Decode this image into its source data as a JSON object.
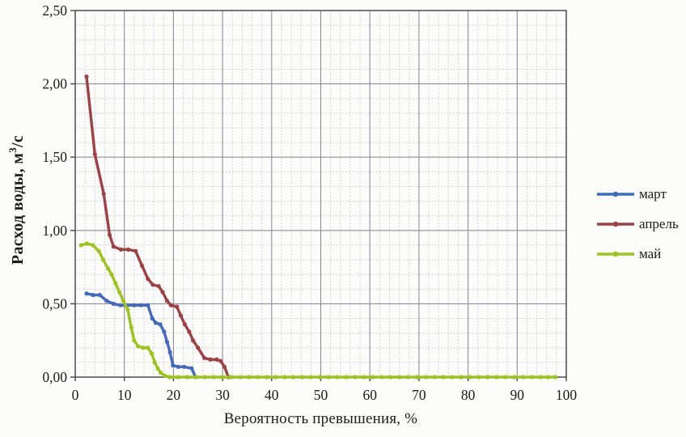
{
  "figure": {
    "background": "#fcfcfb"
  },
  "colors": {
    "grid_minor": "#cacad8",
    "grid_major": "#8e8e9a",
    "axis": "#55555c",
    "tick": "#44444a",
    "text": "#1b1b1b"
  },
  "chart_data": {
    "type": "line",
    "title": "",
    "xlabel": "Вероятность превышения, %",
    "ylabel": "Расход воды, м3/с",
    "ylabel_pre": "Расход воды, м",
    "ylabel_sup": "3",
    "ylabel_post": "/с",
    "xlim": [
      0,
      100
    ],
    "ylim": [
      0,
      2.5
    ],
    "x_major_step": 10,
    "x_minor_step": 2,
    "y_major_step": 0.5,
    "y_minor_step": 0.1,
    "grid": "major+minor",
    "legend_position": "right",
    "x_tick_labels": [
      "0",
      "10",
      "20",
      "30",
      "40",
      "50",
      "60",
      "70",
      "80",
      "90",
      "100"
    ],
    "x_tick_values": [
      0,
      10,
      20,
      30,
      40,
      50,
      60,
      70,
      80,
      90,
      100
    ],
    "y_tick_labels": [
      "0,00",
      "0,50",
      "1,00",
      "1,50",
      "2,00",
      "2,50"
    ],
    "y_tick_values": [
      0,
      0.5,
      1,
      1.5,
      2,
      2.5
    ],
    "series": [
      {
        "name": "март",
        "color": "#4169c4",
        "points": [
          [
            2.3,
            0.57
          ],
          [
            3.6,
            0.56
          ],
          [
            5,
            0.56
          ],
          [
            6.4,
            0.52
          ],
          [
            7.8,
            0.5
          ],
          [
            9.2,
            0.49
          ],
          [
            10.6,
            0.49
          ],
          [
            12,
            0.49
          ],
          [
            13.4,
            0.49
          ],
          [
            14.8,
            0.49
          ],
          [
            15.7,
            0.4
          ],
          [
            16.4,
            0.37
          ],
          [
            17.3,
            0.36
          ],
          [
            18.1,
            0.31
          ],
          [
            18.7,
            0.24
          ],
          [
            19.3,
            0.17
          ],
          [
            19.9,
            0.08
          ],
          [
            21,
            0.07
          ],
          [
            22.2,
            0.07
          ],
          [
            23.7,
            0.06
          ],
          [
            24.5,
            0.0
          ]
        ]
      },
      {
        "name": "апрель",
        "color": "#a04045",
        "points": [
          [
            2.3,
            2.05
          ],
          [
            4,
            1.52
          ],
          [
            5.8,
            1.25
          ],
          [
            7,
            0.97
          ],
          [
            7.8,
            0.89
          ],
          [
            9.3,
            0.87
          ],
          [
            10.8,
            0.87
          ],
          [
            12.3,
            0.86
          ],
          [
            13.6,
            0.76
          ],
          [
            14.8,
            0.67
          ],
          [
            15.8,
            0.63
          ],
          [
            17,
            0.62
          ],
          [
            17.8,
            0.58
          ],
          [
            18.7,
            0.52
          ],
          [
            19.5,
            0.49
          ],
          [
            20.7,
            0.48
          ],
          [
            21.5,
            0.42
          ],
          [
            22.3,
            0.36
          ],
          [
            23.2,
            0.31
          ],
          [
            24,
            0.25
          ],
          [
            25,
            0.2
          ],
          [
            26.3,
            0.13
          ],
          [
            27.5,
            0.12
          ],
          [
            28.8,
            0.12
          ],
          [
            29.6,
            0.11
          ],
          [
            30.4,
            0.07
          ],
          [
            31.2,
            0.0
          ]
        ]
      },
      {
        "name": "май",
        "color": "#9cc51a",
        "points": [
          [
            1.2,
            0.9
          ],
          [
            2.4,
            0.91
          ],
          [
            3.6,
            0.9
          ],
          [
            4.8,
            0.86
          ],
          [
            5.7,
            0.8
          ],
          [
            6.7,
            0.74
          ],
          [
            7.4,
            0.7
          ],
          [
            8.2,
            0.64
          ],
          [
            9,
            0.58
          ],
          [
            9.8,
            0.52
          ],
          [
            10.7,
            0.46
          ],
          [
            11.4,
            0.34
          ],
          [
            12,
            0.25
          ],
          [
            12.8,
            0.21
          ],
          [
            13.8,
            0.2
          ],
          [
            14.8,
            0.2
          ],
          [
            15.6,
            0.16
          ],
          [
            16.2,
            0.1
          ],
          [
            16.8,
            0.06
          ],
          [
            17.4,
            0.03
          ],
          [
            18.2,
            0.01
          ],
          [
            19.2,
            0
          ],
          [
            21,
            0
          ],
          [
            22.8,
            0
          ],
          [
            24.6,
            0
          ],
          [
            26.4,
            0
          ],
          [
            28.2,
            0
          ],
          [
            30,
            0
          ],
          [
            31.8,
            0
          ],
          [
            33.6,
            0
          ],
          [
            35.4,
            0
          ],
          [
            37.2,
            0
          ],
          [
            39,
            0
          ],
          [
            40.8,
            0
          ],
          [
            42.6,
            0
          ],
          [
            44.4,
            0
          ],
          [
            46.2,
            0
          ],
          [
            48,
            0
          ],
          [
            49.8,
            0
          ],
          [
            51.6,
            0
          ],
          [
            53.4,
            0
          ],
          [
            55.2,
            0
          ],
          [
            57,
            0
          ],
          [
            58.8,
            0
          ],
          [
            60.6,
            0
          ],
          [
            62.4,
            0
          ],
          [
            64.2,
            0
          ],
          [
            66,
            0
          ],
          [
            67.8,
            0
          ],
          [
            69.6,
            0
          ],
          [
            71.4,
            0
          ],
          [
            73.2,
            0
          ],
          [
            75,
            0
          ],
          [
            76.8,
            0
          ],
          [
            78.6,
            0
          ],
          [
            80.4,
            0
          ],
          [
            82.2,
            0
          ],
          [
            84,
            0
          ],
          [
            85.8,
            0
          ],
          [
            87.6,
            0
          ],
          [
            89.4,
            0
          ],
          [
            91.2,
            0
          ],
          [
            93,
            0
          ],
          [
            94.8,
            0
          ],
          [
            96.3,
            0
          ],
          [
            97.8,
            0
          ]
        ]
      }
    ]
  }
}
